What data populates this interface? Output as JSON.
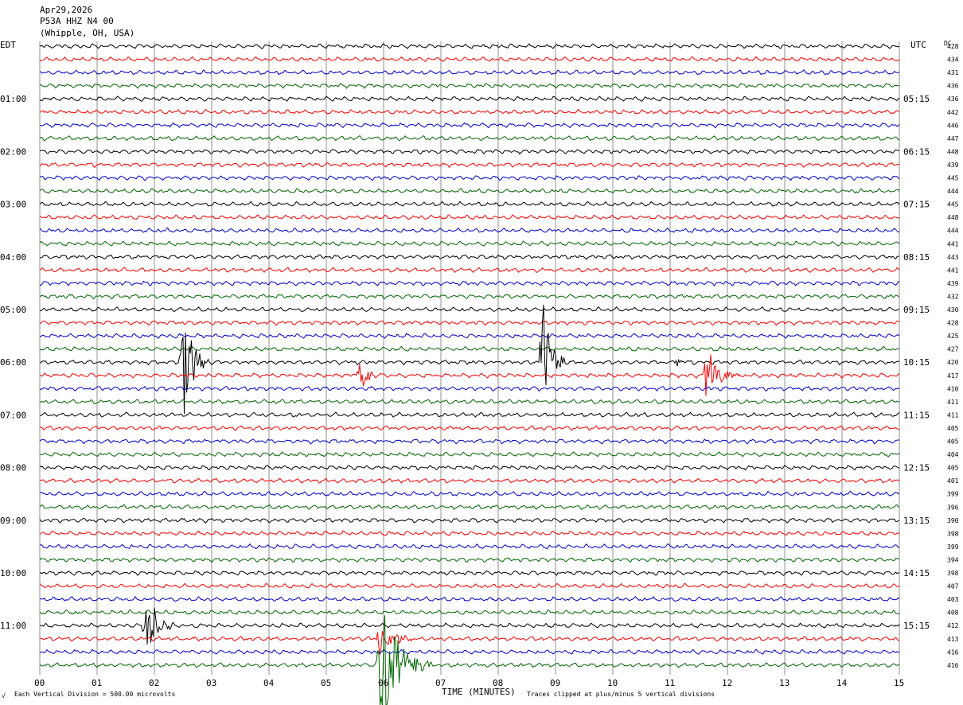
{
  "header": {
    "date": "Apr29,2026",
    "channel": "P53A HHZ N4 00",
    "location": "(Whipple, OH, USA)"
  },
  "left_tz": "EDT",
  "right_tz": "UTC",
  "dc_header": "DC",
  "footer": {
    "left": "Each Vertical Division =  500.00 microvolts",
    "right": "Traces clipped at plus/minus 5 vertical divisions",
    "corner": "√"
  },
  "chart_data": {
    "type": "line",
    "title": "",
    "xlabel": "TIME (MINUTES)",
    "ylabel": "",
    "xlim": [
      0,
      15
    ],
    "x_ticks": [
      "00",
      "01",
      "02",
      "03",
      "04",
      "05",
      "06",
      "07",
      "08",
      "09",
      "10",
      "11",
      "12",
      "13",
      "14",
      "15"
    ],
    "trace_minutes": 15,
    "rows": 48,
    "colors": [
      "#000000",
      "#ff0000",
      "#0000cc",
      "#006600"
    ],
    "left_hour_labels": [
      "01:00",
      "02:00",
      "03:00",
      "04:00",
      "05:00",
      "06:00",
      "07:00",
      "08:00",
      "09:00",
      "10:00",
      "11:00"
    ],
    "right_hour_labels": [
      "05:15",
      "06:15",
      "07:15",
      "08:15",
      "09:15",
      "10:15",
      "11:15",
      "12:15",
      "13:15",
      "14:15",
      "15:15"
    ],
    "dc_values": [
      "428",
      "434",
      "431",
      "436",
      "436",
      "442",
      "446",
      "447",
      "448",
      "439",
      "445",
      "444",
      "445",
      "448",
      "444",
      "441",
      "443",
      "441",
      "439",
      "432",
      "430",
      "428",
      "425",
      "427",
      "420",
      "417",
      "410",
      "411",
      "411",
      "405",
      "405",
      "404",
      "405",
      "401",
      "399",
      "396",
      "390",
      "398",
      "399",
      "394",
      "398",
      "407",
      "403",
      "408",
      "412",
      "413",
      "416",
      "416"
    ],
    "events": [
      {
        "row": 24,
        "minute": 2.5,
        "amplitude": 4.5,
        "duration": 0.45
      },
      {
        "row": 24,
        "minute": 8.78,
        "amplitude": 5,
        "duration": 0.4
      },
      {
        "row": 24,
        "minute": 11.15,
        "amplitude": 0.6,
        "duration": 0.15
      },
      {
        "row": 25,
        "minute": 5.6,
        "amplitude": 1.3,
        "duration": 0.35
      },
      {
        "row": 25,
        "minute": 11.65,
        "amplitude": 2.3,
        "duration": 0.55
      },
      {
        "row": 44,
        "minute": 1.85,
        "amplitude": 3,
        "duration": 0.5
      },
      {
        "row": 45,
        "minute": 5.95,
        "amplitude": 1.6,
        "duration": 0.6
      },
      {
        "row": 47,
        "minute": 5.95,
        "amplitude": 5,
        "duration": 0.9
      }
    ]
  }
}
